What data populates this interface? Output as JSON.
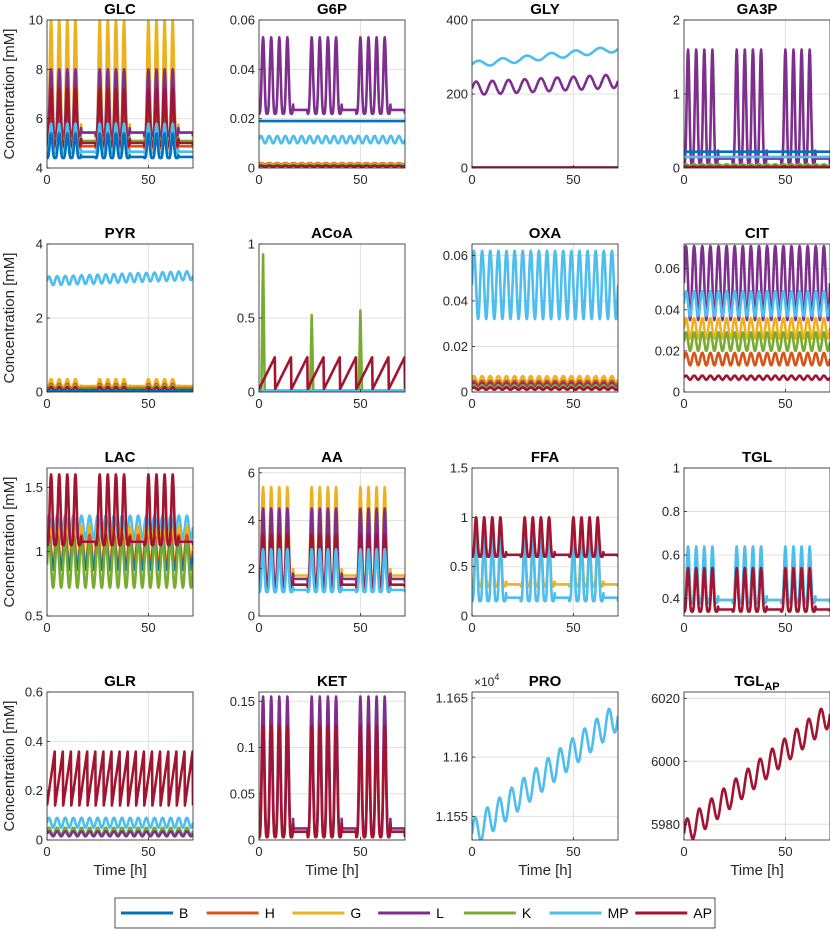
{
  "figure": {
    "ylabel": "Concentration [mM]",
    "xlabel": "Time [h]",
    "legend_position": "bottom-center"
  },
  "legend": [
    {
      "label": "B",
      "color": "#0072BD"
    },
    {
      "label": "H",
      "color": "#D95319"
    },
    {
      "label": "G",
      "color": "#EDB120"
    },
    {
      "label": "L",
      "color": "#7E2F8E"
    },
    {
      "label": "K",
      "color": "#77AC30"
    },
    {
      "label": "MP",
      "color": "#4DBEEE"
    },
    {
      "label": "AP",
      "color": "#A2142F"
    }
  ],
  "chart_data": [
    {
      "type": "line",
      "title": "GLC",
      "ylim": [
        4,
        10
      ],
      "xlim": [
        0,
        72
      ],
      "yticks": [
        "4",
        "6",
        "8",
        "10"
      ],
      "ytick_values": [
        4,
        6,
        8,
        10
      ],
      "xticks": [
        "0",
        "50"
      ],
      "xtick_values": [
        0,
        50
      ],
      "series": [
        {
          "name": "G",
          "base": 5.2,
          "amp": 4.8,
          "period": 4,
          "shape": "spike",
          "clip": true
        },
        {
          "name": "L",
          "base": 5.3,
          "amp": 2.7,
          "period": 4,
          "shape": "spike"
        },
        {
          "name": "K",
          "base": 5.0,
          "amp": 2.0,
          "period": 4,
          "shape": "spike"
        },
        {
          "name": "H",
          "base": 4.8,
          "amp": 1.6,
          "period": 4,
          "shape": "spike"
        },
        {
          "name": "AP",
          "base": 4.9,
          "amp": 2.3,
          "period": 4,
          "shape": "spike"
        },
        {
          "name": "MP",
          "base": 4.6,
          "amp": 1.2,
          "period": 4,
          "shape": "spike"
        },
        {
          "name": "B",
          "base": 4.4,
          "amp": 1.0,
          "period": 4,
          "shape": "spike"
        }
      ]
    },
    {
      "type": "line",
      "title": "G6P",
      "ylim": [
        0,
        0.06
      ],
      "xlim": [
        0,
        72
      ],
      "yticks": [
        "0",
        "0.02",
        "0.04",
        "0.06"
      ],
      "ytick_values": [
        0,
        0.02,
        0.04,
        0.06
      ],
      "xticks": [
        "0",
        "50"
      ],
      "xtick_values": [
        0,
        50
      ],
      "series": [
        {
          "name": "L",
          "base": 0.022,
          "amp": 0.031,
          "period": 4,
          "shape": "spike"
        },
        {
          "name": "B",
          "base": 0.019,
          "amp": 0.0,
          "period": 4,
          "shape": "flat"
        },
        {
          "name": "MP",
          "base": 0.01,
          "amp": 0.003,
          "period": 4,
          "shape": "sin"
        },
        {
          "name": "H",
          "base": 0.0015,
          "amp": 0.0005,
          "period": 4,
          "shape": "sin"
        },
        {
          "name": "G",
          "base": 0.0012,
          "amp": 0.0005,
          "period": 4,
          "shape": "sin"
        },
        {
          "name": "K",
          "base": 0.0009,
          "amp": 0.0004,
          "period": 4,
          "shape": "sin"
        },
        {
          "name": "AP",
          "base": 0.0006,
          "amp": 0.0003,
          "period": 4,
          "shape": "sin"
        }
      ]
    },
    {
      "type": "line",
      "title": "GLY",
      "ylim": [
        0,
        400
      ],
      "xlim": [
        0,
        72
      ],
      "yticks": [
        "0",
        "200",
        "400"
      ],
      "ytick_values": [
        0,
        200,
        400
      ],
      "xticks": [
        "0",
        "50"
      ],
      "xtick_values": [
        0,
        50
      ],
      "series": [
        {
          "name": "MP",
          "base": 280,
          "amp": 8,
          "period": 12,
          "shape": "trend",
          "trend": 42
        },
        {
          "name": "L",
          "base": 215,
          "amp": 18,
          "period": 8,
          "shape": "trend",
          "trend": 20
        },
        {
          "name": "B",
          "base": 1,
          "amp": 0,
          "period": 4,
          "shape": "flat"
        },
        {
          "name": "AP",
          "base": 1,
          "amp": 0,
          "period": 4,
          "shape": "flat"
        }
      ]
    },
    {
      "type": "line",
      "title": "GA3P",
      "ylim": [
        0,
        2
      ],
      "xlim": [
        0,
        72
      ],
      "yticks": [
        "0",
        "1",
        "2"
      ],
      "ytick_values": [
        0,
        1,
        2
      ],
      "xticks": [
        "0",
        "50"
      ],
      "xtick_values": [
        0,
        50
      ],
      "series": [
        {
          "name": "L",
          "base": 0.05,
          "amp": 1.55,
          "period": 4,
          "shape": "spike"
        },
        {
          "name": "B",
          "base": 0.22,
          "amp": 0,
          "period": 4,
          "shape": "flat"
        },
        {
          "name": "MP",
          "base": 0.15,
          "amp": 0,
          "period": 4,
          "shape": "flat"
        },
        {
          "name": "K",
          "base": 0.03,
          "amp": 0.02,
          "period": 4,
          "shape": "sin"
        },
        {
          "name": "AP",
          "base": 0.01,
          "amp": 0.01,
          "period": 4,
          "shape": "sin"
        }
      ]
    },
    {
      "type": "line",
      "title": "PYR",
      "ylim": [
        0,
        4
      ],
      "xlim": [
        0,
        72
      ],
      "yticks": [
        "0",
        "2",
        "4"
      ],
      "ytick_values": [
        0,
        2,
        4
      ],
      "xticks": [],
      "xtick_values": [
        0,
        50
      ],
      "series": [
        {
          "name": "MP",
          "base": 3.0,
          "amp": 0.12,
          "period": 4,
          "shape": "trend",
          "trend": 0.15
        },
        {
          "name": "G",
          "base": 0.15,
          "amp": 0.2,
          "period": 4,
          "shape": "spike"
        },
        {
          "name": "H",
          "base": 0.1,
          "amp": 0.12,
          "period": 4,
          "shape": "spike"
        },
        {
          "name": "K",
          "base": 0.08,
          "amp": 0.1,
          "period": 4,
          "shape": "spike"
        },
        {
          "name": "AP",
          "base": 0.05,
          "amp": 0.08,
          "period": 4,
          "shape": "spike"
        },
        {
          "name": "B",
          "base": 0.02,
          "amp": 0.02,
          "period": 4,
          "shape": "sin"
        }
      ]
    },
    {
      "type": "line",
      "title": "ACoA",
      "ylim": [
        0,
        1
      ],
      "xlim": [
        0,
        72
      ],
      "yticks": [
        "0",
        "0.5",
        "1"
      ],
      "ytick_values": [
        0,
        0.5,
        1
      ],
      "xticks": [],
      "xtick_values": [
        0,
        50
      ],
      "series": [
        {
          "name": "K",
          "base": 0.01,
          "amp": 0.0,
          "period": 24,
          "shape": "pulse",
          "peaks": [
            [
              2,
              0.93
            ],
            [
              26,
              0.52
            ],
            [
              50,
              0.55
            ]
          ]
        },
        {
          "name": "AP",
          "base": 0.02,
          "amp": 0.22,
          "period": 8,
          "shape": "saw"
        },
        {
          "name": "MP",
          "base": 0.005,
          "amp": 0,
          "period": 4,
          "shape": "flat"
        }
      ]
    },
    {
      "type": "line",
      "title": "OXA",
      "ylim": [
        0,
        0.065
      ],
      "xlim": [
        0,
        72
      ],
      "yticks": [
        "0",
        "0.02",
        "0.04",
        "0.06"
      ],
      "ytick_values": [
        0,
        0.02,
        0.04,
        0.06
      ],
      "xticks": [],
      "xtick_values": [
        0,
        50
      ],
      "series": [
        {
          "name": "MP",
          "base": 0.032,
          "amp": 0.03,
          "period": 4,
          "shape": "sin"
        },
        {
          "name": "G",
          "base": 0.004,
          "amp": 0.003,
          "period": 4,
          "shape": "sin"
        },
        {
          "name": "H",
          "base": 0.003,
          "amp": 0.002,
          "period": 4,
          "shape": "sin"
        },
        {
          "name": "L",
          "base": 0.002,
          "amp": 0.002,
          "period": 4,
          "shape": "sin"
        },
        {
          "name": "K",
          "base": 0.0015,
          "amp": 0.0015,
          "period": 4,
          "shape": "sin"
        },
        {
          "name": "AP",
          "base": 0.001,
          "amp": 0.001,
          "period": 4,
          "shape": "sin"
        }
      ]
    },
    {
      "type": "line",
      "title": "CIT",
      "ylim": [
        0,
        0.072
      ],
      "xlim": [
        0,
        72
      ],
      "yticks": [
        "0",
        "0.02",
        "0.04",
        "0.06"
      ],
      "ytick_values": [
        0,
        0.02,
        0.04,
        0.06
      ],
      "xticks": [],
      "xtick_values": [
        0,
        50
      ],
      "series": [
        {
          "name": "L",
          "base": 0.035,
          "amp": 0.036,
          "period": 4,
          "shape": "sin"
        },
        {
          "name": "MP",
          "base": 0.037,
          "amp": 0.012,
          "period": 4,
          "shape": "sin"
        },
        {
          "name": "G",
          "base": 0.026,
          "amp": 0.01,
          "period": 4,
          "shape": "sin"
        },
        {
          "name": "K",
          "base": 0.02,
          "amp": 0.009,
          "period": 4,
          "shape": "sin"
        },
        {
          "name": "H",
          "base": 0.013,
          "amp": 0.006,
          "period": 4,
          "shape": "sin"
        },
        {
          "name": "AP",
          "base": 0.006,
          "amp": 0.002,
          "period": 4,
          "shape": "sin"
        }
      ]
    },
    {
      "type": "line",
      "title": "LAC",
      "ylim": [
        0.5,
        1.65
      ],
      "xlim": [
        0,
        72
      ],
      "yticks": [
        "0.5",
        "1",
        "1.5"
      ],
      "ytick_values": [
        0.5,
        1,
        1.5
      ],
      "xticks": [],
      "xtick_values": [
        0,
        50
      ],
      "series": [
        {
          "name": "MP",
          "base": 1.1,
          "amp": 0.18,
          "period": 4,
          "shape": "sin"
        },
        {
          "name": "G",
          "base": 0.9,
          "amp": 0.3,
          "period": 4,
          "shape": "sin"
        },
        {
          "name": "H",
          "base": 0.88,
          "amp": 0.25,
          "period": 4,
          "shape": "sin"
        },
        {
          "name": "B",
          "base": 0.86,
          "amp": 0.22,
          "period": 4,
          "shape": "sin"
        },
        {
          "name": "K",
          "base": 0.72,
          "amp": 0.36,
          "period": 4,
          "shape": "sin"
        },
        {
          "name": "AP",
          "base": 1.05,
          "amp": 0.55,
          "period": 4,
          "shape": "spike"
        }
      ]
    },
    {
      "type": "line",
      "title": "AA",
      "ylim": [
        0,
        6.2
      ],
      "xlim": [
        0,
        72
      ],
      "yticks": [
        "0",
        "2",
        "4",
        "6"
      ],
      "ytick_values": [
        0,
        2,
        4,
        6
      ],
      "xticks": [],
      "xtick_values": [
        0,
        50
      ],
      "series": [
        {
          "name": "G",
          "base": 1.5,
          "amp": 3.9,
          "period": 4,
          "shape": "spike"
        },
        {
          "name": "L",
          "base": 1.4,
          "amp": 3.1,
          "period": 4,
          "shape": "spike"
        },
        {
          "name": "AP",
          "base": 1.2,
          "amp": 2.2,
          "period": 4,
          "shape": "spike"
        },
        {
          "name": "MP",
          "base": 1.0,
          "amp": 1.8,
          "period": 4,
          "shape": "spike"
        }
      ]
    },
    {
      "type": "line",
      "title": "FFA",
      "ylim": [
        0,
        1.5
      ],
      "xlim": [
        0,
        72
      ],
      "yticks": [
        "0",
        "0.5",
        "1",
        "1.5"
      ],
      "ytick_values": [
        0,
        0.5,
        1,
        1.5
      ],
      "xticks": [],
      "xtick_values": [
        0,
        50
      ],
      "series": [
        {
          "name": "G",
          "base": 0.3,
          "amp": 0.4,
          "period": 4,
          "shape": "spike"
        },
        {
          "name": "MP",
          "base": 0.15,
          "amp": 0.7,
          "period": 4,
          "shape": "spike"
        },
        {
          "name": "AP",
          "base": 0.6,
          "amp": 0.4,
          "period": 4,
          "shape": "spike"
        }
      ]
    },
    {
      "type": "line",
      "title": "TGL",
      "ylim": [
        0.32,
        1
      ],
      "xlim": [
        0,
        72
      ],
      "yticks": [
        "0.4",
        "0.6",
        "0.8",
        "1"
      ],
      "ytick_values": [
        0.4,
        0.6,
        0.8,
        1
      ],
      "xticks": [],
      "xtick_values": [
        0,
        50
      ],
      "series": [
        {
          "name": "MP",
          "base": 0.38,
          "amp": 0.26,
          "period": 4,
          "shape": "spike"
        },
        {
          "name": "AP",
          "base": 0.34,
          "amp": 0.2,
          "period": 4,
          "shape": "spike"
        }
      ]
    },
    {
      "type": "line",
      "title": "GLR",
      "ylim": [
        0,
        0.6
      ],
      "xlim": [
        0,
        72
      ],
      "yticks": [
        "0",
        "0.2",
        "0.4",
        "0.6"
      ],
      "ytick_values": [
        0,
        0.2,
        0.4,
        0.6
      ],
      "xticks": [
        "0",
        "50"
      ],
      "xtick_values": [
        0,
        50
      ],
      "series": [
        {
          "name": "AP",
          "base": 0.14,
          "amp": 0.23,
          "period": 4,
          "shape": "saw"
        },
        {
          "name": "MP",
          "base": 0.05,
          "amp": 0.04,
          "period": 4,
          "shape": "sin"
        },
        {
          "name": "K",
          "base": 0.02,
          "amp": 0.03,
          "period": 4,
          "shape": "sin"
        },
        {
          "name": "L",
          "base": 0.015,
          "amp": 0.02,
          "period": 4,
          "shape": "sin"
        }
      ]
    },
    {
      "type": "line",
      "title": "KET",
      "ylim": [
        0,
        0.16
      ],
      "xlim": [
        0,
        72
      ],
      "yticks": [
        "0",
        "0.05",
        "0.1",
        "0.15"
      ],
      "ytick_values": [
        0,
        0.05,
        0.1,
        0.15
      ],
      "xticks": [
        "0",
        "50"
      ],
      "xtick_values": [
        0,
        50
      ],
      "series": [
        {
          "name": "L",
          "base": 0.005,
          "amp": 0.15,
          "period": 4,
          "shape": "spike"
        },
        {
          "name": "AP",
          "base": 0.003,
          "amp": 0.12,
          "period": 4,
          "shape": "spike"
        }
      ]
    },
    {
      "type": "line",
      "title": "PRO",
      "title_prefix": "×10",
      "title_exp": "4",
      "ylim": [
        1.153,
        1.1655
      ],
      "xlim": [
        0,
        72
      ],
      "yticks": [
        "1.155",
        "1.16",
        "1.165"
      ],
      "ytick_values": [
        1.155,
        1.16,
        1.165
      ],
      "xticks": [
        "0",
        "50"
      ],
      "xtick_values": [
        0,
        50
      ],
      "series": [
        {
          "name": "MP",
          "base": 1.1535,
          "amp": 0.0012,
          "period": 6,
          "shape": "trend",
          "trend": 0.01
        }
      ]
    },
    {
      "type": "line",
      "title": "TGL",
      "title_sub": "AP",
      "ylim": [
        5975,
        6022
      ],
      "xlim": [
        0,
        72
      ],
      "yticks": [
        "5980",
        "6000",
        "6020"
      ],
      "ytick_values": [
        5980,
        6000,
        6020
      ],
      "xticks": [
        "0",
        "50"
      ],
      "xtick_values": [
        0,
        50
      ],
      "series": [
        {
          "name": "AP",
          "base": 5977,
          "amp": 4,
          "period": 6,
          "shape": "trend",
          "trend": 38
        }
      ]
    }
  ]
}
